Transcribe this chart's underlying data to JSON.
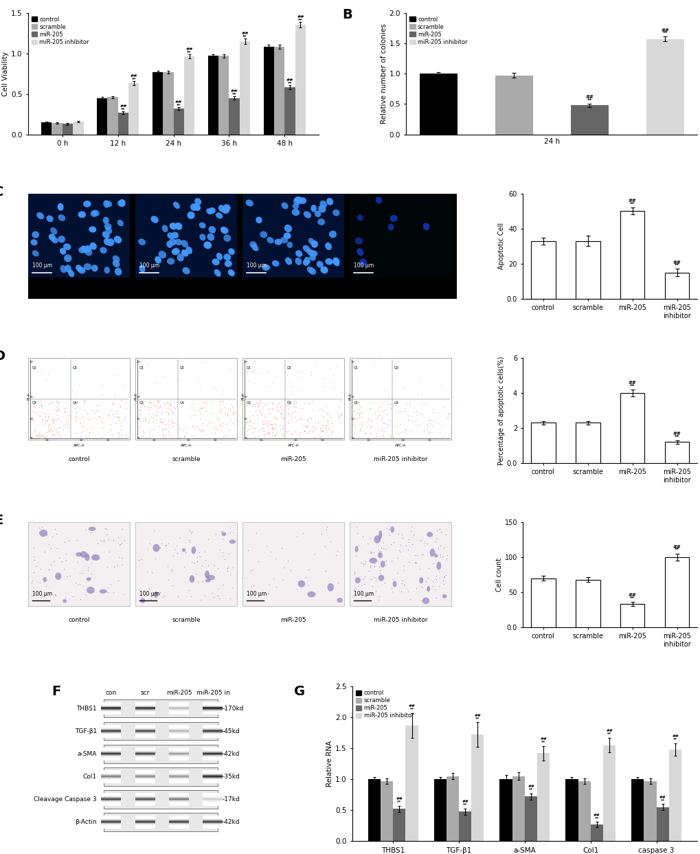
{
  "panel_A": {
    "timepoints": [
      "0 h",
      "12 h",
      "24 h",
      "36 h",
      "48 h"
    ],
    "control": [
      0.15,
      0.45,
      0.77,
      0.97,
      1.08
    ],
    "scramble": [
      0.14,
      0.46,
      0.77,
      0.97,
      1.08
    ],
    "mir205": [
      0.13,
      0.27,
      0.32,
      0.45,
      0.58
    ],
    "mir205inh": [
      0.16,
      0.63,
      0.96,
      1.15,
      1.35
    ],
    "err_control": [
      0.01,
      0.015,
      0.015,
      0.02,
      0.025
    ],
    "err_scramble": [
      0.01,
      0.015,
      0.015,
      0.02,
      0.025
    ],
    "err_mir205": [
      0.01,
      0.015,
      0.015,
      0.02,
      0.025
    ],
    "err_mir205inh": [
      0.01,
      0.025,
      0.025,
      0.03,
      0.035
    ],
    "ylabel": "Cell Viability",
    "ylim": [
      0.0,
      1.5
    ],
    "yticks": [
      0.0,
      0.5,
      1.0,
      1.5
    ]
  },
  "panel_B": {
    "categories": [
      "control",
      "scramble",
      "miR-205",
      "miR-205 inhibitor"
    ],
    "values": [
      1.0,
      0.97,
      0.48,
      1.57
    ],
    "errors": [
      0.03,
      0.04,
      0.03,
      0.04
    ],
    "xlabel": "24 h",
    "ylabel": "Relative number of colonies",
    "ylim": [
      0.0,
      2.0
    ],
    "yticks": [
      0.0,
      0.5,
      1.0,
      1.5,
      2.0
    ]
  },
  "panel_C": {
    "categories": [
      "control",
      "scramble",
      "miR-205",
      "miR-205 inhibitor"
    ],
    "values": [
      33,
      33,
      50,
      15
    ],
    "errors": [
      2,
      3,
      2,
      2
    ],
    "ylabel": "Apoptotic Cell",
    "ylim": [
      0,
      60
    ],
    "yticks": [
      0,
      20,
      40,
      60
    ]
  },
  "panel_D": {
    "categories": [
      "control",
      "scramble",
      "miR-205",
      "miR-205 inhibitor"
    ],
    "values": [
      2.3,
      2.3,
      4.0,
      1.2
    ],
    "errors": [
      0.1,
      0.1,
      0.2,
      0.1
    ],
    "ylabel": "Percentage of apoptotic cells(%)",
    "ylim": [
      0,
      6
    ],
    "yticks": [
      0,
      2,
      4,
      6
    ]
  },
  "panel_E": {
    "categories": [
      "control",
      "scramble",
      "miR-205",
      "miR-205 inhibitor"
    ],
    "values": [
      70,
      68,
      33,
      100
    ],
    "errors": [
      3,
      3,
      3,
      5
    ],
    "ylabel": "Cell count",
    "ylim": [
      0,
      150
    ],
    "yticks": [
      0,
      50,
      100,
      150
    ]
  },
  "panel_G": {
    "genes": [
      "THBS1",
      "TGF-β1",
      "a-SMA",
      "Col1",
      "caspase 3"
    ],
    "control": [
      1.0,
      1.0,
      1.0,
      1.0,
      1.0
    ],
    "scramble": [
      0.97,
      1.05,
      1.05,
      0.97,
      0.97
    ],
    "mir205": [
      0.52,
      0.48,
      0.72,
      0.27,
      0.55
    ],
    "mir205inh": [
      1.87,
      1.72,
      1.42,
      1.55,
      1.48
    ],
    "err_control": [
      0.04,
      0.04,
      0.07,
      0.04,
      0.04
    ],
    "err_scramble": [
      0.04,
      0.05,
      0.06,
      0.04,
      0.04
    ],
    "err_mir205": [
      0.05,
      0.05,
      0.05,
      0.04,
      0.05
    ],
    "err_mir205inh": [
      0.2,
      0.2,
      0.12,
      0.12,
      0.1
    ],
    "ylabel": "Relative RNA",
    "ylim": [
      0,
      2.5
    ],
    "yticks": [
      0.0,
      0.5,
      1.0,
      1.5,
      2.0,
      2.5
    ]
  },
  "colors": {
    "control": "#000000",
    "scramble": "#aaaaaa",
    "mir205": "#666666",
    "mir205inh": "#d8d8d8"
  },
  "legend_labels": [
    "control",
    "scramble",
    "miR-205",
    "miR-205 inhibitor"
  ],
  "western_blot_labels": [
    "THBS1",
    "TGF-β1",
    "a-SMA",
    "Col1",
    "Cleavage Caspase 3",
    "β-Actin"
  ],
  "western_blot_sizes": [
    "-170kd",
    "-45kd",
    "-42kd",
    "-35kd",
    "-17kd",
    "-42kd"
  ],
  "western_col_labels": [
    "con",
    "scr",
    "miR-205",
    "miR-205 in"
  ],
  "wb_intensities": {
    "THBS1": [
      0.85,
      0.8,
      0.25,
      0.9
    ],
    "TGF-β1": [
      0.8,
      0.75,
      0.3,
      0.82
    ],
    "a-SMA": [
      0.82,
      0.78,
      0.4,
      0.85
    ],
    "Col1": [
      0.55,
      0.5,
      0.45,
      0.95
    ],
    "Cleavage Caspase 3": [
      0.75,
      0.72,
      0.55,
      0.2
    ],
    "β-Actin": [
      0.8,
      0.8,
      0.8,
      0.8
    ]
  }
}
